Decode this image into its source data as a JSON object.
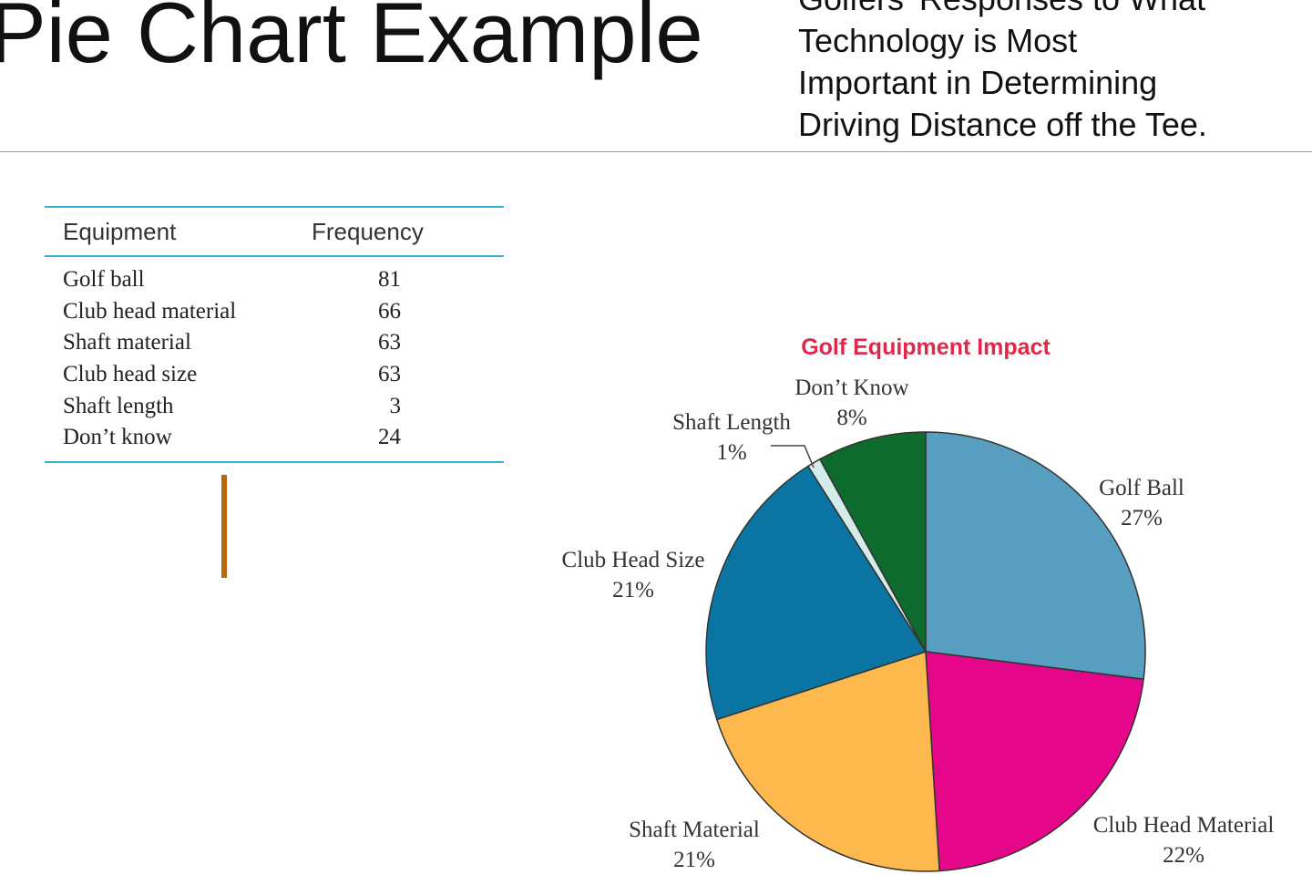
{
  "slide": {
    "title": "Pie Chart Example",
    "subtitle_lines": [
      "Golfers' Responses to What",
      "Technology is Most",
      "Important in Determining",
      "Driving Distance off the Tee."
    ]
  },
  "table": {
    "headers": [
      "Equipment",
      "Frequency"
    ],
    "rows": [
      {
        "equipment": "Golf ball",
        "frequency": "81"
      },
      {
        "equipment": "Club head material",
        "frequency": "66"
      },
      {
        "equipment": "Shaft material",
        "frequency": "63"
      },
      {
        "equipment": "Club head size",
        "frequency": "63"
      },
      {
        "equipment": "Shaft length",
        "frequency": "3"
      },
      {
        "equipment": "Don’t know",
        "frequency": "24"
      }
    ],
    "rule_color": "#3ab0d8"
  },
  "chart_data": {
    "type": "pie",
    "title": "Golf Equipment Impact",
    "title_color": "#e0284a",
    "slices": [
      {
        "label": "Golf Ball",
        "percent_label": "27%",
        "value": 81,
        "color": "#579ec1"
      },
      {
        "label": "Club Head Material",
        "percent_label": "22%",
        "value": 66,
        "color": "#e5068a"
      },
      {
        "label": "Shaft Material",
        "percent_label": "21%",
        "value": 63,
        "color": "#fdb94e"
      },
      {
        "label": "Club Head Size",
        "percent_label": "21%",
        "value": 63,
        "color": "#0a74a3"
      },
      {
        "label": "Shaft Length",
        "percent_label": "1%",
        "value": 3,
        "color": "#d4ece7"
      },
      {
        "label": "Don’t Know",
        "percent_label": "8%",
        "value": 24,
        "color": "#0e6b2e"
      }
    ],
    "start": "12 o'clock",
    "direction": "clockwise",
    "legend": "none"
  }
}
